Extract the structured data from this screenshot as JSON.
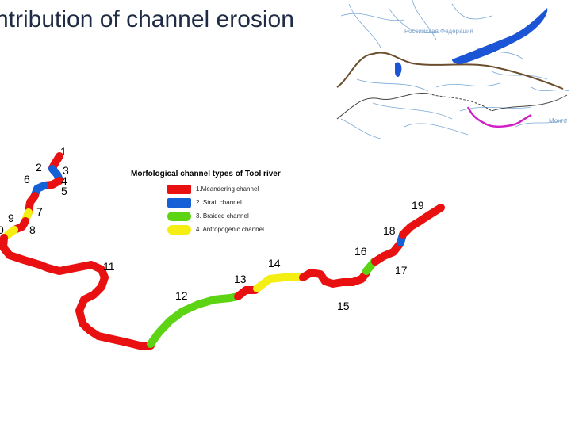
{
  "title": "ntribution of channel erosion",
  "inset_map": {
    "country_label_ru": "Российская Федерация",
    "country_label_mn": "Монго"
  },
  "legend": {
    "title": "Morfological channel types of Tool river",
    "items": [
      {
        "label": "1.Meandering channel",
        "color": "#e81010"
      },
      {
        "label": "2. Strait channel",
        "color": "#1560d6"
      },
      {
        "label": "3. Braided channel",
        "color": "#5cd414"
      },
      {
        "label": "4. Antropogenic channel",
        "color": "#f5ee12"
      }
    ]
  },
  "segments": [
    "1",
    "2",
    "3",
    "4",
    "5",
    "6",
    "7",
    "8",
    "9",
    "0",
    "11",
    "12",
    "13",
    "14",
    "15",
    "16",
    "17",
    "18",
    "19"
  ],
  "colors": {
    "meandering": "#e81010",
    "strait": "#1560d6",
    "braided": "#5cd414",
    "anthropogenic": "#f5ee12",
    "boundary": "#6b4e2e",
    "rivers": "#7aa8d8"
  }
}
